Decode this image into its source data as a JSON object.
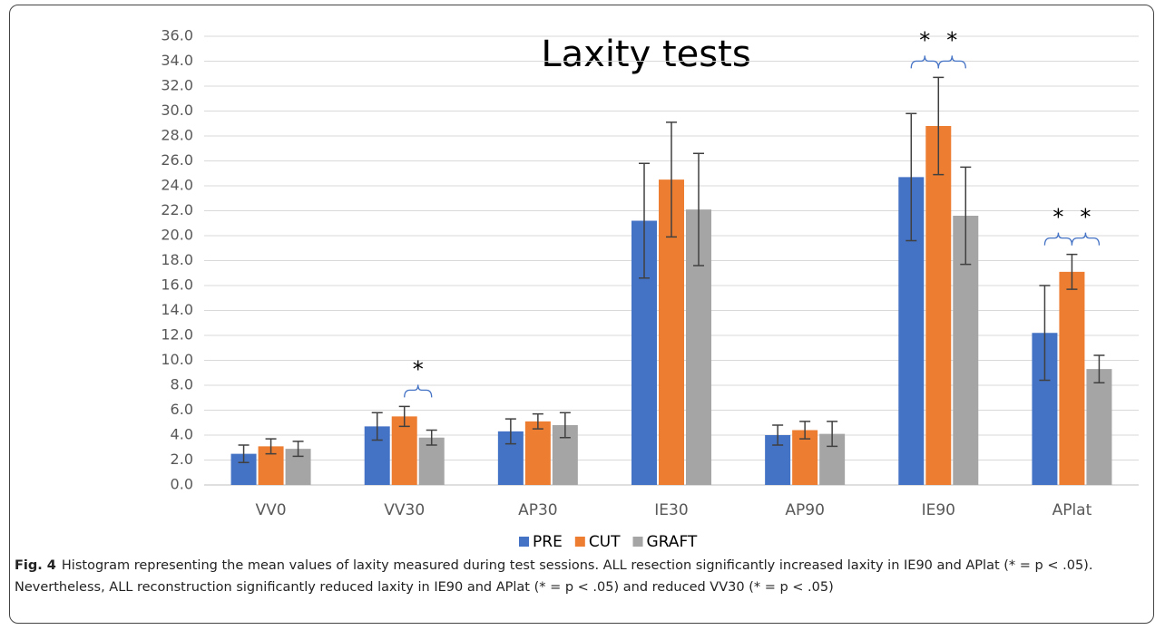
{
  "chart_data": {
    "type": "bar",
    "title": "Laxity tests",
    "categories": [
      "VV0",
      "VV30",
      "AP30",
      "IE30",
      "AP90",
      "IE90",
      "APlat"
    ],
    "series": [
      {
        "name": "PRE",
        "color": "#4472c4",
        "values": [
          2.5,
          4.7,
          4.3,
          21.2,
          4.0,
          24.7,
          12.2
        ],
        "errors": [
          0.7,
          1.1,
          1.0,
          4.6,
          0.8,
          5.1,
          3.8
        ]
      },
      {
        "name": "CUT",
        "color": "#ed7d31",
        "values": [
          3.1,
          5.5,
          5.1,
          24.5,
          4.4,
          28.8,
          17.1
        ],
        "errors": [
          0.6,
          0.8,
          0.6,
          4.6,
          0.7,
          3.9,
          1.4
        ]
      },
      {
        "name": "GRAFT",
        "color": "#a5a5a5",
        "values": [
          2.9,
          3.8,
          4.8,
          22.1,
          4.1,
          21.6,
          9.3
        ],
        "errors": [
          0.6,
          0.6,
          1.0,
          4.5,
          1.0,
          3.9,
          1.1
        ]
      }
    ],
    "ylim": [
      0,
      36
    ],
    "yticks": [
      {
        "value": 0,
        "label": "0.0"
      },
      {
        "value": 2,
        "label": "2.0"
      },
      {
        "value": 4,
        "label": "4.0"
      },
      {
        "value": 6,
        "label": "6.0"
      },
      {
        "value": 8,
        "label": "8.0"
      },
      {
        "value": 10,
        "label": "10.0"
      },
      {
        "value": 12,
        "label": "12.0"
      },
      {
        "value": 14,
        "label": "14.0"
      },
      {
        "value": 16,
        "label": "16.0"
      },
      {
        "value": 18,
        "label": "18.0"
      },
      {
        "value": 20,
        "label": "20.0"
      },
      {
        "value": 22,
        "label": "22.0"
      },
      {
        "value": 24,
        "label": "24.0"
      },
      {
        "value": 26,
        "label": "26.0"
      },
      {
        "value": 28,
        "label": "28.0"
      },
      {
        "value": 30,
        "label": "30.0"
      },
      {
        "value": 32,
        "label": "32.0"
      },
      {
        "value": 34,
        "label": "34.0"
      },
      {
        "value": 36,
        "label": "36.0"
      }
    ],
    "grid": true,
    "legend": "bottom",
    "annotations": [
      {
        "text": "*",
        "category": "VV30",
        "between": [
          "CUT",
          "GRAFT"
        ]
      },
      {
        "text": "*",
        "category": "IE90",
        "between": [
          "PRE",
          "CUT"
        ]
      },
      {
        "text": "*",
        "category": "IE90",
        "between": [
          "CUT",
          "GRAFT"
        ]
      },
      {
        "text": "*",
        "category": "APlat",
        "between": [
          "PRE",
          "CUT"
        ]
      },
      {
        "text": "*",
        "category": "APlat",
        "between": [
          "CUT",
          "GRAFT"
        ]
      }
    ]
  },
  "caption": {
    "label": "Fig. 4",
    "text": "Histogram representing the mean values of laxity measured during test sessions. ALL resection significantly increased laxity in IE90 and APlat (* = p < .05). Nevertheless, ALL reconstruction significantly reduced laxity in IE90 and APlat (* = p < .05) and reduced VV30 (* = p < .05)"
  }
}
